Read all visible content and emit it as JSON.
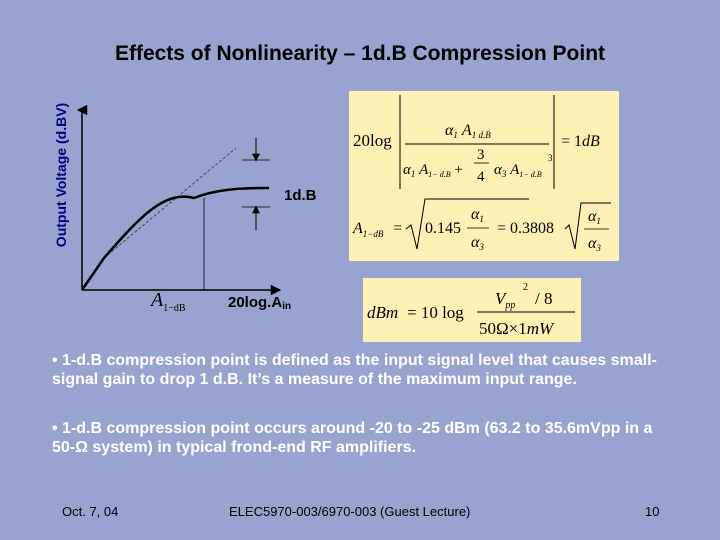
{
  "slide": {
    "title": "Effects of Nonlinearity – 1d.B Compression Point",
    "y_axis_label": "Output Voltage (d.BV)",
    "compression_marker_label": "1d.B",
    "x_axis_label_main": "20log.A",
    "x_axis_label_sub": "in",
    "input_point_label": "A",
    "input_point_sub": "1−dB"
  },
  "equations": {
    "compression": {
      "prefix": "20log",
      "numerator": "α₁ A₁ d.B",
      "coef_fraction": "3 / 4",
      "denominator": "α₁ A₁₋ d.B + (3/4) α₃ A₁₋ d.B³",
      "result": "= 1dB"
    },
    "amplitude": {
      "lhs": "A₁₋d.B",
      "eq": "=",
      "root1_coef": "0.145",
      "root2_coef": "= 0.3808",
      "ratio": "α₁ / α₃"
    },
    "dbm": {
      "lhs": "dBm",
      "eq": "= 10 log",
      "numerator": "Vpp² / 8",
      "denominator": "50Ω×1mW"
    }
  },
  "bullets": [
    "• 1-d.B compression point is defined as the input signal level that causes small-signal gain to drop 1 d.B. It’s a measure of the maximum input range.",
    "• 1-d.B compression point occurs around -20 to -25 dBm (63.2 to 35.6mVpp in a 50-Ω system) in typical frond-end RF amplifiers."
  ],
  "footer": {
    "date": "Oct. 7, 04",
    "course": "ELEC5970-003/6970-003 (Guest Lecture)",
    "page": "10"
  },
  "colors": {
    "background": "#99a3cf",
    "equation_box": "#fcf0b4",
    "axis_label": "#000080",
    "bullet_text": "#ffffff"
  }
}
